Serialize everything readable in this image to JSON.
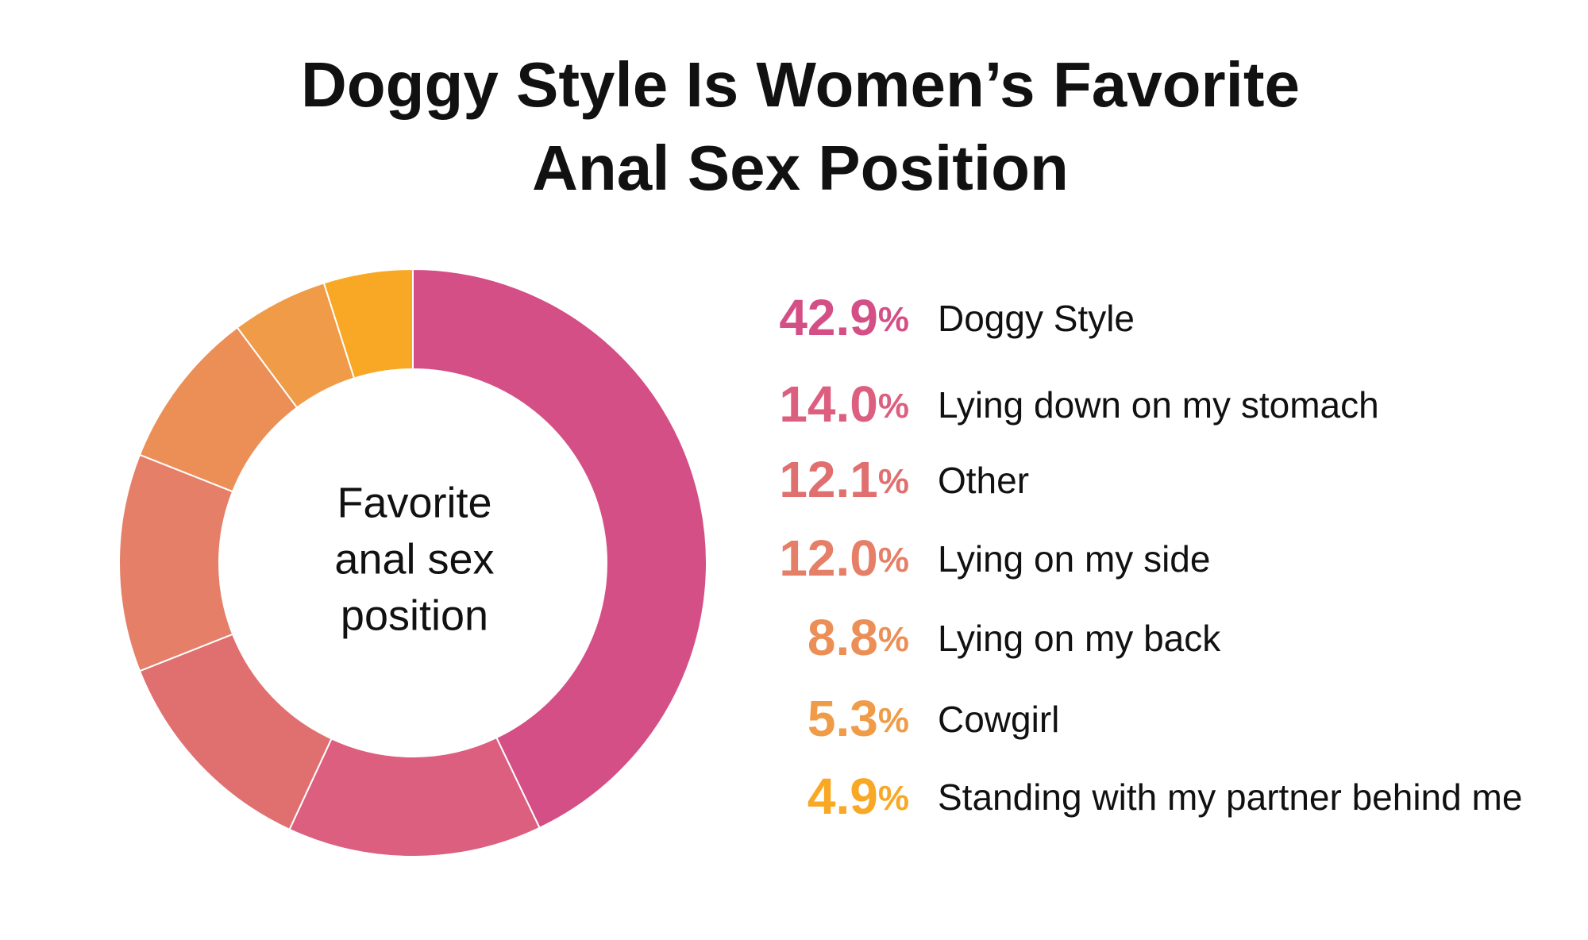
{
  "chart_data": {
    "type": "pie",
    "title": [
      "Doggy Style Is Women’s Favorite",
      "Anal Sex Position"
    ],
    "center_label": [
      "Favorite",
      "anal sex",
      "position"
    ],
    "categories": [
      "Doggy Style",
      "Lying down on my stomach",
      "Other",
      "Lying on my side",
      "Lying on my back",
      "Cowgirl",
      "Standing with my partner behind me"
    ],
    "values": [
      42.9,
      14.0,
      12.1,
      12.0,
      8.8,
      5.3,
      4.9
    ],
    "value_labels": [
      "42.9%",
      "14.0%",
      "12.1%",
      "12.0%",
      "8.8%",
      "5.3%",
      "4.9%"
    ],
    "colors": [
      "#d44f86",
      "#dc5f7f",
      "#e07070",
      "#e67f68",
      "#ec8f57",
      "#f09b47",
      "#f8a824"
    ]
  }
}
